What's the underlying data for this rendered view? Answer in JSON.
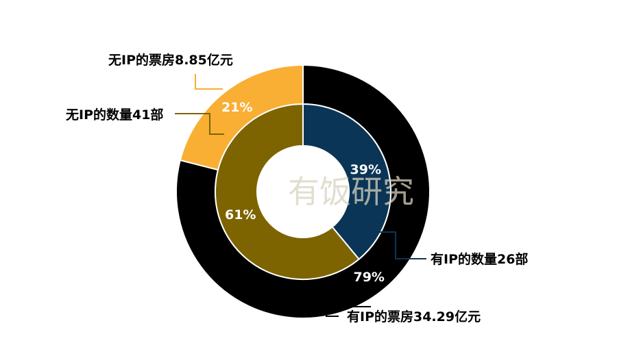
{
  "watermark": "有饭研究",
  "chart_data": [
    {
      "type": "pie",
      "ring": "outer",
      "metric": "票房",
      "slices": [
        {
          "label": "有IP的票房34.29亿元",
          "value": 79,
          "display": "79%",
          "color": "#000000"
        },
        {
          "label": "无IP的票房8.85亿元",
          "value": 21,
          "display": "21%",
          "color": "#F9AE34"
        }
      ]
    },
    {
      "type": "pie",
      "ring": "inner",
      "metric": "数量",
      "slices": [
        {
          "label": "有IP的数量26部",
          "value": 39,
          "display": "39%",
          "color": "#0A3556"
        },
        {
          "label": "无IP的数量41部",
          "value": 61,
          "display": "61%",
          "color": "#7D6400"
        }
      ]
    }
  ]
}
